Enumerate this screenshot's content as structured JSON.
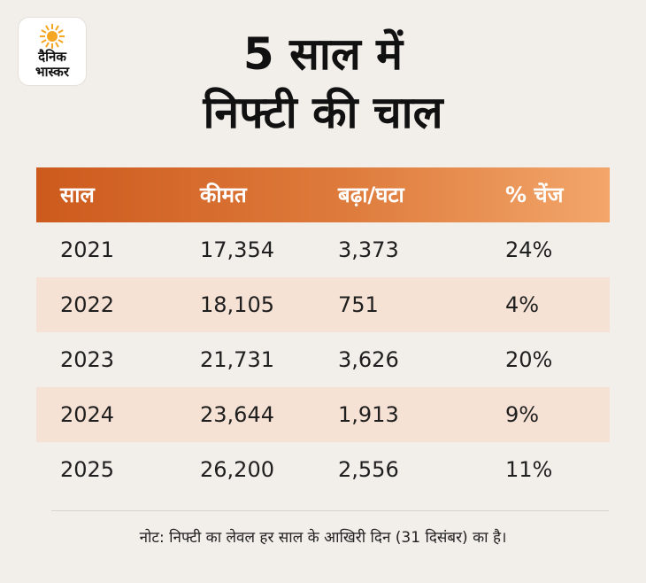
{
  "brand": {
    "line1": "दैनिक",
    "line2": "भास्कर",
    "sun_color": "#f5a623"
  },
  "title": {
    "line1": "5 साल में",
    "line2": "निफ्टी की चाल"
  },
  "chart_data": {
    "type": "table",
    "title": "5 साल में निफ्टी की चाल",
    "columns": [
      "साल",
      "कीमत",
      "बढ़ा/घटा",
      "% चेंज"
    ],
    "rows": [
      [
        "2021",
        "17,354",
        "3,373",
        "24%"
      ],
      [
        "2022",
        "18,105",
        "751",
        "4%"
      ],
      [
        "2023",
        "21,731",
        "3,626",
        "20%"
      ],
      [
        "2024",
        "23,644",
        "1,913",
        "9%"
      ],
      [
        "2025",
        "26,200",
        "2,556",
        "11%"
      ]
    ],
    "header_gradient": [
      "#cd5a1d",
      "#f3a66b"
    ],
    "stripe_color": "#f6e2d4"
  },
  "note": "नोट: निफ्टी का लेवल हर साल के आखिरी दिन (31 दिसंबर) का है।"
}
